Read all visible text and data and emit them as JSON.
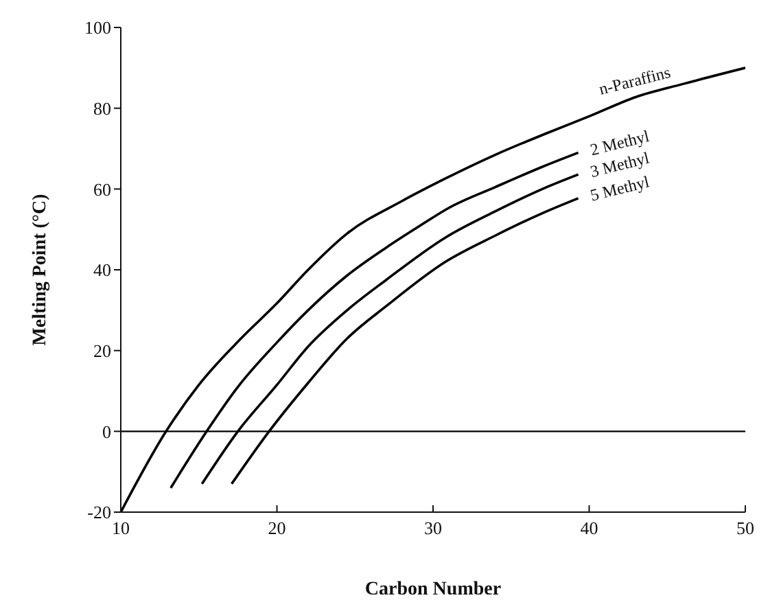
{
  "chart_data": {
    "type": "line",
    "xlabel": "Carbon Number",
    "ylabel": "Melting Point (°C)",
    "xlim": [
      10,
      50
    ],
    "xticks": [
      10,
      20,
      30,
      40,
      50
    ],
    "ylim": [
      -20,
      100
    ],
    "yticks": [
      -20,
      0,
      20,
      40,
      60,
      80,
      100
    ],
    "grid": false,
    "legend": false,
    "marker": "none",
    "line_style": "solid",
    "ref_lines": [
      {
        "axis": "y",
        "value": 0,
        "color": "#000000"
      }
    ],
    "series": [
      {
        "name": "n-Paraffins",
        "color": "#000000",
        "x": [
          10,
          12.9,
          15,
          17.7,
          20,
          22,
          24.5,
          28,
          31,
          34,
          37.4,
          40,
          43,
          46,
          50
        ],
        "values": [
          -20,
          0,
          11.5,
          23,
          31.7,
          40,
          49,
          57,
          63,
          68.5,
          74,
          78,
          82.8,
          86,
          90
        ]
      },
      {
        "name": "2 Methyl",
        "color": "#000000",
        "x": [
          13.2,
          15.5,
          17.5,
          20,
          22,
          24.5,
          27,
          29.2,
          31,
          34,
          37,
          39.3
        ],
        "values": [
          -14,
          0,
          11,
          22,
          30,
          38.6,
          45.5,
          51,
          55.3,
          60.5,
          65.5,
          69
        ]
      },
      {
        "name": "3 Methyl",
        "color": "#000000",
        "x": [
          15.2,
          17.5,
          20,
          22,
          24.5,
          27,
          30.8,
          34,
          37,
          39.3
        ],
        "values": [
          -13,
          0,
          11.5,
          21,
          30,
          37.5,
          48,
          54.5,
          60,
          63.6
        ]
      },
      {
        "name": "5 Methyl",
        "color": "#000000",
        "x": [
          17.1,
          19.5,
          22,
          24.5,
          27,
          30.8,
          34,
          37,
          39.3
        ],
        "values": [
          -13,
          0,
          12,
          23,
          31,
          42,
          48.5,
          54,
          57.7
        ]
      }
    ]
  }
}
